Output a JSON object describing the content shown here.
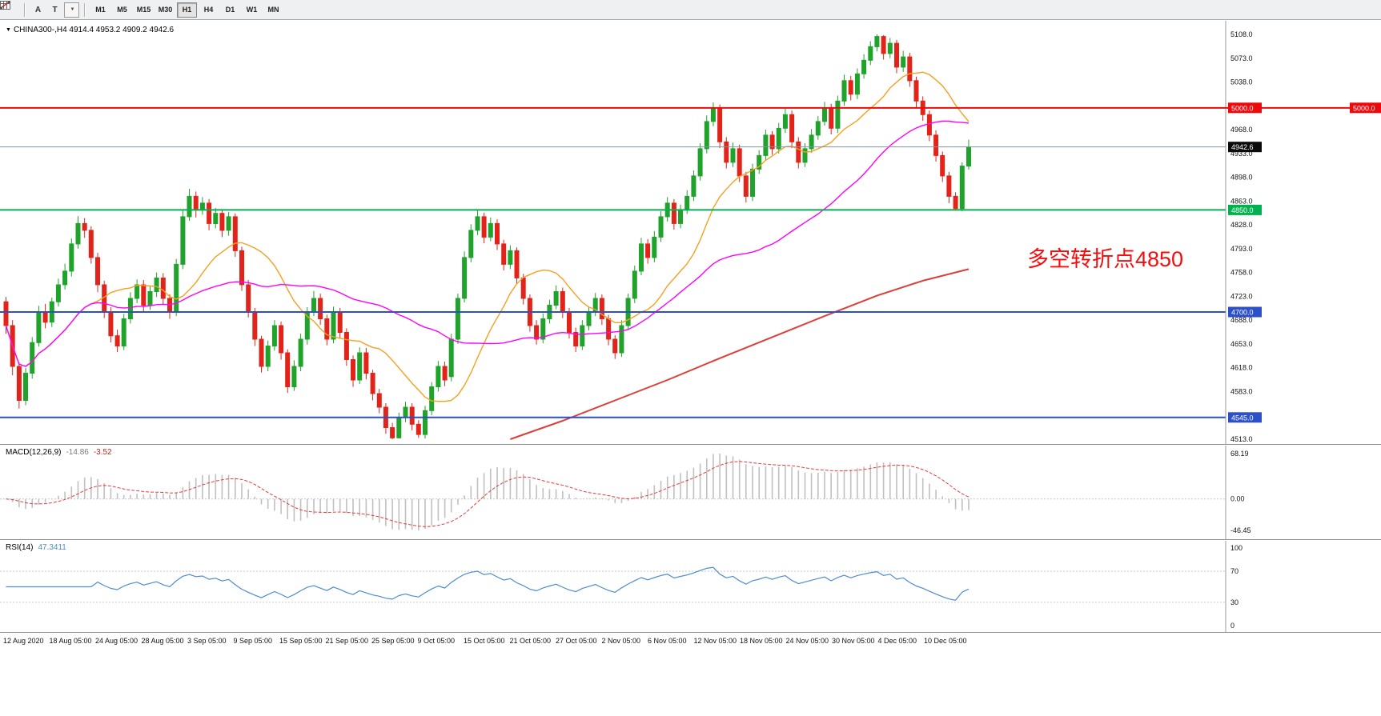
{
  "toolbar": {
    "arrow_tool_label": "A",
    "text_tool_label": "T",
    "timeframes": [
      "M1",
      "M5",
      "M15",
      "M30",
      "H1",
      "H4",
      "D1",
      "W1",
      "MN"
    ],
    "active_timeframe": "H1"
  },
  "icons": {
    "chart_dropdown": "▼",
    "shapes_caret": "▼"
  },
  "chart": {
    "symbol_period": "CHINA300-,H4",
    "ohlc_text": "4914.4 4953.2 4909.2 4942.6",
    "annotation": "多空转折点4850"
  },
  "chart_data": {
    "type": "candlestick",
    "symbol": "CHINA300-",
    "timeframe": "H4",
    "last_ohlc": {
      "open": 4914.4,
      "high": 4953.2,
      "low": 4909.2,
      "close": 4942.6
    },
    "y_range": [
      4513,
      5108
    ],
    "price_ticks": [
      5108,
      5073,
      5038,
      4968,
      4933,
      4898,
      4863,
      4828,
      4793,
      4758,
      4723,
      4688,
      4653,
      4618,
      4583,
      4513
    ],
    "levels": [
      {
        "price": 5000,
        "label": "5000.0",
        "color": "#ee0a0a",
        "full_width": true,
        "tag_far_right": true
      },
      {
        "price": 4850,
        "label": "4850.0",
        "color": "#00b14f",
        "full_width": false,
        "tag_far_right": false
      },
      {
        "price": 4700,
        "label": "4700.0",
        "color": "#2b50c8",
        "full_width": false,
        "tag_far_right": false
      },
      {
        "price": 4545,
        "label": "4545.0",
        "color": "#2b50c8",
        "full_width": false,
        "tag_far_right": false
      }
    ],
    "current_price": {
      "value": 4942.6,
      "label": "4942.6",
      "line_color": "#7e95a8",
      "tag_color": "#0a0a0a"
    },
    "colors": {
      "up": "#1fa32b",
      "down": "#e2231a",
      "ma_fast": "#f5a020",
      "ma_mid": "#ff00ff",
      "ma_slow": "#d9403a",
      "macd_hist": "#c0c0c0",
      "macd_signal": "#e03c3c",
      "rsi_line": "#4e8bd2",
      "annotation": "#f50d0d"
    },
    "ma": {
      "fast_period": 14,
      "mid_period": 40,
      "slow_waypoints": [
        [
          78,
          4513
        ],
        [
          86,
          4540
        ],
        [
          94,
          4570
        ],
        [
          102,
          4600
        ],
        [
          110,
          4632
        ],
        [
          118,
          4663
        ],
        [
          126,
          4694
        ],
        [
          134,
          4724
        ],
        [
          141,
          4746
        ],
        [
          148,
          4763
        ]
      ]
    },
    "candles": [
      [
        4715,
        4722,
        4668,
        4680
      ],
      [
        4680,
        4688,
        4607,
        4620
      ],
      [
        4620,
        4626,
        4558,
        4570
      ],
      [
        4570,
        4618,
        4563,
        4610
      ],
      [
        4610,
        4663,
        4602,
        4655
      ],
      [
        4655,
        4709,
        4649,
        4700
      ],
      [
        4700,
        4712,
        4676,
        4685
      ],
      [
        4685,
        4721,
        4678,
        4715
      ],
      [
        4715,
        4749,
        4708,
        4740
      ],
      [
        4740,
        4771,
        4733,
        4760
      ],
      [
        4760,
        4808,
        4752,
        4800
      ],
      [
        4800,
        4841,
        4793,
        4830
      ],
      [
        4830,
        4838,
        4809,
        4820
      ],
      [
        4820,
        4826,
        4771,
        4780
      ],
      [
        4780,
        4787,
        4729,
        4740
      ],
      [
        4740,
        4746,
        4691,
        4700
      ],
      [
        4700,
        4707,
        4655,
        4665
      ],
      [
        4665,
        4674,
        4641,
        4650
      ],
      [
        4650,
        4697,
        4644,
        4690
      ],
      [
        4690,
        4729,
        4683,
        4720
      ],
      [
        4720,
        4748,
        4713,
        4740
      ],
      [
        4740,
        4747,
        4701,
        4710
      ],
      [
        4710,
        4738,
        4703,
        4730
      ],
      [
        4730,
        4758,
        4722,
        4750
      ],
      [
        4750,
        4757,
        4711,
        4720
      ],
      [
        4720,
        4726,
        4690,
        4700
      ],
      [
        4700,
        4778,
        4694,
        4770
      ],
      [
        4770,
        4849,
        4763,
        4840
      ],
      [
        4840,
        4881,
        4834,
        4870
      ],
      [
        4870,
        4877,
        4839,
        4850
      ],
      [
        4850,
        4869,
        4843,
        4860
      ],
      [
        4860,
        4866,
        4820,
        4830
      ],
      [
        4830,
        4853,
        4823,
        4845
      ],
      [
        4845,
        4851,
        4810,
        4820
      ],
      [
        4820,
        4847,
        4812,
        4840
      ],
      [
        4840,
        4845,
        4781,
        4790
      ],
      [
        4790,
        4796,
        4731,
        4740
      ],
      [
        4740,
        4747,
        4692,
        4700
      ],
      [
        4700,
        4706,
        4650,
        4660
      ],
      [
        4660,
        4665,
        4611,
        4620
      ],
      [
        4620,
        4658,
        4613,
        4650
      ],
      [
        4650,
        4688,
        4643,
        4680
      ],
      [
        4680,
        4686,
        4630,
        4640
      ],
      [
        4640,
        4645,
        4581,
        4590
      ],
      [
        4590,
        4629,
        4584,
        4620
      ],
      [
        4620,
        4668,
        4613,
        4660
      ],
      [
        4660,
        4707,
        4652,
        4700
      ],
      [
        4700,
        4731,
        4694,
        4720
      ],
      [
        4720,
        4727,
        4681,
        4690
      ],
      [
        4690,
        4696,
        4651,
        4660
      ],
      [
        4660,
        4708,
        4654,
        4700
      ],
      [
        4700,
        4706,
        4661,
        4670
      ],
      [
        4670,
        4676,
        4621,
        4630
      ],
      [
        4630,
        4636,
        4590,
        4600
      ],
      [
        4600,
        4648,
        4594,
        4640
      ],
      [
        4640,
        4647,
        4601,
        4610
      ],
      [
        4610,
        4615,
        4570,
        4580
      ],
      [
        4580,
        4587,
        4551,
        4560
      ],
      [
        4560,
        4566,
        4521,
        4530
      ],
      [
        4530,
        4537,
        4513,
        4515
      ],
      [
        4515,
        4552,
        4514,
        4545
      ],
      [
        4545,
        4568,
        4538,
        4560
      ],
      [
        4560,
        4566,
        4526,
        4535
      ],
      [
        4535,
        4541,
        4515,
        4520
      ],
      [
        4520,
        4562,
        4514,
        4555
      ],
      [
        4555,
        4597,
        4548,
        4590
      ],
      [
        4590,
        4628,
        4583,
        4620
      ],
      [
        4620,
        4627,
        4591,
        4600
      ],
      [
        4605,
        4668,
        4598,
        4660
      ],
      [
        4660,
        4727,
        4653,
        4720
      ],
      [
        4720,
        4789,
        4714,
        4780
      ],
      [
        4780,
        4829,
        4773,
        4820
      ],
      [
        4820,
        4851,
        4813,
        4840
      ],
      [
        4840,
        4846,
        4801,
        4810
      ],
      [
        4810,
        4839,
        4804,
        4830
      ],
      [
        4830,
        4836,
        4791,
        4800
      ],
      [
        4800,
        4806,
        4761,
        4770
      ],
      [
        4770,
        4798,
        4763,
        4790
      ],
      [
        4790,
        4795,
        4741,
        4750
      ],
      [
        4750,
        4756,
        4711,
        4720
      ],
      [
        4720,
        4726,
        4671,
        4680
      ],
      [
        4680,
        4688,
        4652,
        4660
      ],
      [
        4660,
        4698,
        4654,
        4690
      ],
      [
        4690,
        4718,
        4683,
        4710
      ],
      [
        4710,
        4739,
        4704,
        4730
      ],
      [
        4730,
        4736,
        4691,
        4700
      ],
      [
        4700,
        4706,
        4661,
        4670
      ],
      [
        4670,
        4677,
        4641,
        4650
      ],
      [
        4650,
        4688,
        4644,
        4680
      ],
      [
        4680,
        4708,
        4673,
        4700
      ],
      [
        4700,
        4728,
        4694,
        4720
      ],
      [
        4720,
        4726,
        4681,
        4690
      ],
      [
        4690,
        4696,
        4651,
        4660
      ],
      [
        4660,
        4666,
        4631,
        4640
      ],
      [
        4640,
        4688,
        4634,
        4680
      ],
      [
        4680,
        4727,
        4673,
        4720
      ],
      [
        4720,
        4768,
        4713,
        4760
      ],
      [
        4760,
        4809,
        4754,
        4800
      ],
      [
        4800,
        4807,
        4771,
        4780
      ],
      [
        4780,
        4819,
        4773,
        4810
      ],
      [
        4810,
        4848,
        4803,
        4840
      ],
      [
        4840,
        4869,
        4833,
        4860
      ],
      [
        4860,
        4866,
        4821,
        4830
      ],
      [
        4830,
        4858,
        4823,
        4850
      ],
      [
        4850,
        4879,
        4844,
        4870
      ],
      [
        4870,
        4908,
        4863,
        4900
      ],
      [
        4900,
        4948,
        4893,
        4940
      ],
      [
        4940,
        4989,
        4933,
        4980
      ],
      [
        4980,
        5008,
        4973,
        5000
      ],
      [
        5000,
        5005,
        4941,
        4950
      ],
      [
        4950,
        4957,
        4911,
        4920
      ],
      [
        4920,
        4949,
        4913,
        4940
      ],
      [
        4940,
        4946,
        4891,
        4900
      ],
      [
        4900,
        4906,
        4861,
        4870
      ],
      [
        4870,
        4918,
        4863,
        4910
      ],
      [
        4910,
        4938,
        4903,
        4930
      ],
      [
        4930,
        4968,
        4923,
        4960
      ],
      [
        4960,
        4966,
        4931,
        4940
      ],
      [
        4940,
        4978,
        4933,
        4970
      ],
      [
        4970,
        4999,
        4963,
        4990
      ],
      [
        4990,
        4996,
        4941,
        4950
      ],
      [
        4950,
        4957,
        4911,
        4920
      ],
      [
        4920,
        4948,
        4913,
        4940
      ],
      [
        4940,
        4969,
        4934,
        4960
      ],
      [
        4960,
        4988,
        4953,
        4980
      ],
      [
        4980,
        5009,
        4974,
        5000
      ],
      [
        5000,
        5006,
        4961,
        4970
      ],
      [
        4970,
        5018,
        4963,
        5010
      ],
      [
        5010,
        5049,
        5003,
        5040
      ],
      [
        5040,
        5047,
        5011,
        5020
      ],
      [
        5020,
        5058,
        5013,
        5050
      ],
      [
        5050,
        5079,
        5043,
        5070
      ],
      [
        5070,
        5098,
        5063,
        5090
      ],
      [
        5090,
        5108,
        5083,
        5105
      ],
      [
        5105,
        5107,
        5071,
        5080
      ],
      [
        5080,
        5103,
        5073,
        5095
      ],
      [
        5095,
        5100,
        5051,
        5060
      ],
      [
        5060,
        5084,
        5053,
        5075
      ],
      [
        5075,
        5081,
        5031,
        5040
      ],
      [
        5040,
        5046,
        5001,
        5010
      ],
      [
        5010,
        5017,
        4981,
        4990
      ],
      [
        4990,
        4996,
        4951,
        4960
      ],
      [
        4960,
        4967,
        4921,
        4930
      ],
      [
        4930,
        4936,
        4891,
        4900
      ],
      [
        4900,
        4906,
        4860,
        4870
      ],
      [
        4870,
        4876,
        4849,
        4852
      ],
      [
        4852,
        4920,
        4848,
        4914.4
      ],
      [
        4914.4,
        4953.2,
        4909.2,
        4942.6
      ]
    ],
    "x_labels": [
      "12 Aug 2020",
      "18 Aug 05:00",
      "24 Aug 05:00",
      "28 Aug 05:00",
      "3 Sep 05:00",
      "9 Sep 05:00",
      "15 Sep 05:00",
      "21 Sep 05:00",
      "25 Sep 05:00",
      "9 Oct 05:00",
      "15 Oct 05:00",
      "21 Oct 05:00",
      "27 Oct 05:00",
      "2 Nov 05:00",
      "6 Nov 05:00",
      "12 Nov 05:00",
      "18 Nov 05:00",
      "24 Nov 05:00",
      "30 Nov 05:00",
      "4 Dec 05:00",
      "10 Dec 05:00"
    ],
    "macd": {
      "name": "MACD(12,26,9)",
      "value_main": "-14.86",
      "value_signal": "-3.52",
      "axis_max_label": "68.19",
      "axis_zero_label": "0.00",
      "axis_min_label": "-46.45",
      "params": [
        12,
        26,
        9
      ]
    },
    "rsi": {
      "name": "RSI(14)",
      "value": "47.3411",
      "axis_labels": [
        "100",
        "70",
        "30",
        "0"
      ],
      "levels": [
        70,
        30
      ],
      "period": 14
    }
  }
}
